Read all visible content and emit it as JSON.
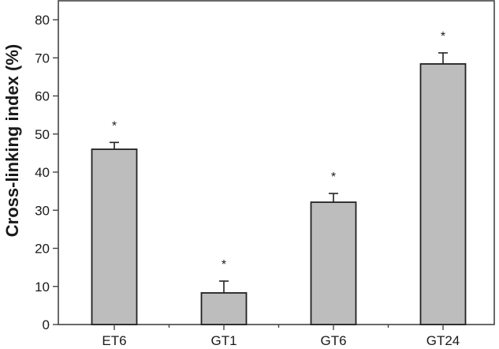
{
  "chart_data": {
    "type": "bar",
    "title": "",
    "xlabel": "",
    "ylabel": "Cross-linking index (%)",
    "categories": [
      "ET6",
      "GT1",
      "GT6",
      "GT24"
    ],
    "values": [
      46,
      8.3,
      32.1,
      68.4
    ],
    "error_upper": [
      1.8,
      3.1,
      2.3,
      2.9
    ],
    "significance_markers": [
      "*",
      "*",
      "*",
      "*"
    ],
    "ylim": [
      0,
      85
    ],
    "yticks": [
      0,
      10,
      20,
      30,
      40,
      50,
      60,
      70,
      80
    ],
    "grid": false,
    "legend": null,
    "bar_color": "#bdbdbd",
    "bar_edge_color": "#222222",
    "axis_color": "#444444"
  }
}
